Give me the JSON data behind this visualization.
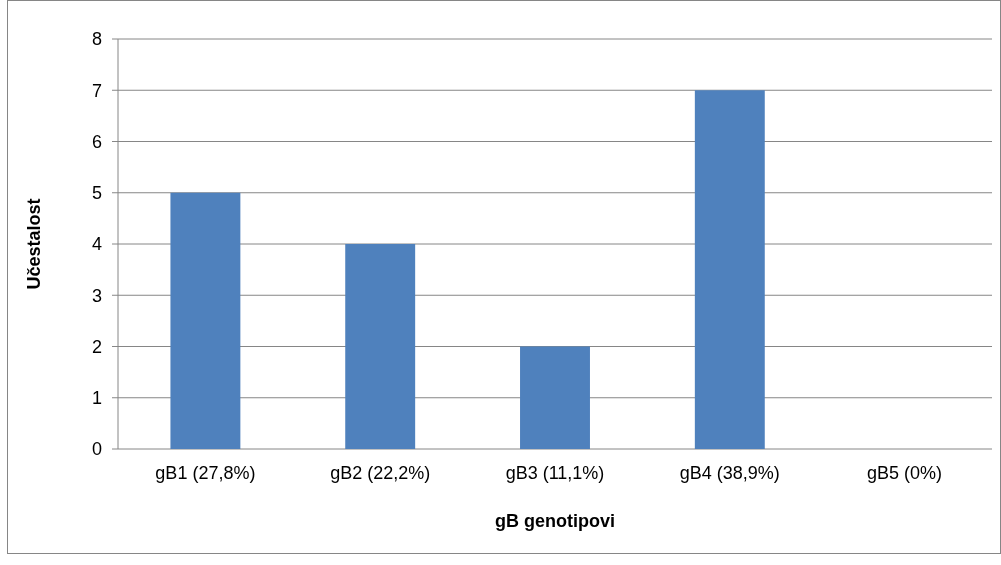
{
  "chart_data": {
    "type": "bar",
    "xlabel": "gB genotipovi",
    "ylabel": "Učestalost",
    "categories": [
      "gB1 (27,8%)",
      "gB2 (22,2%)",
      "gB3 (11,1%)",
      "gB4 (38,9%)",
      "gB5 (0%)"
    ],
    "values": [
      5,
      4,
      2,
      7,
      0
    ],
    "color": "#4f81bd",
    "ylim": [
      0,
      8
    ],
    "yticks": [
      0,
      1,
      2,
      3,
      4,
      5,
      6,
      7,
      8
    ],
    "grid": "y"
  }
}
